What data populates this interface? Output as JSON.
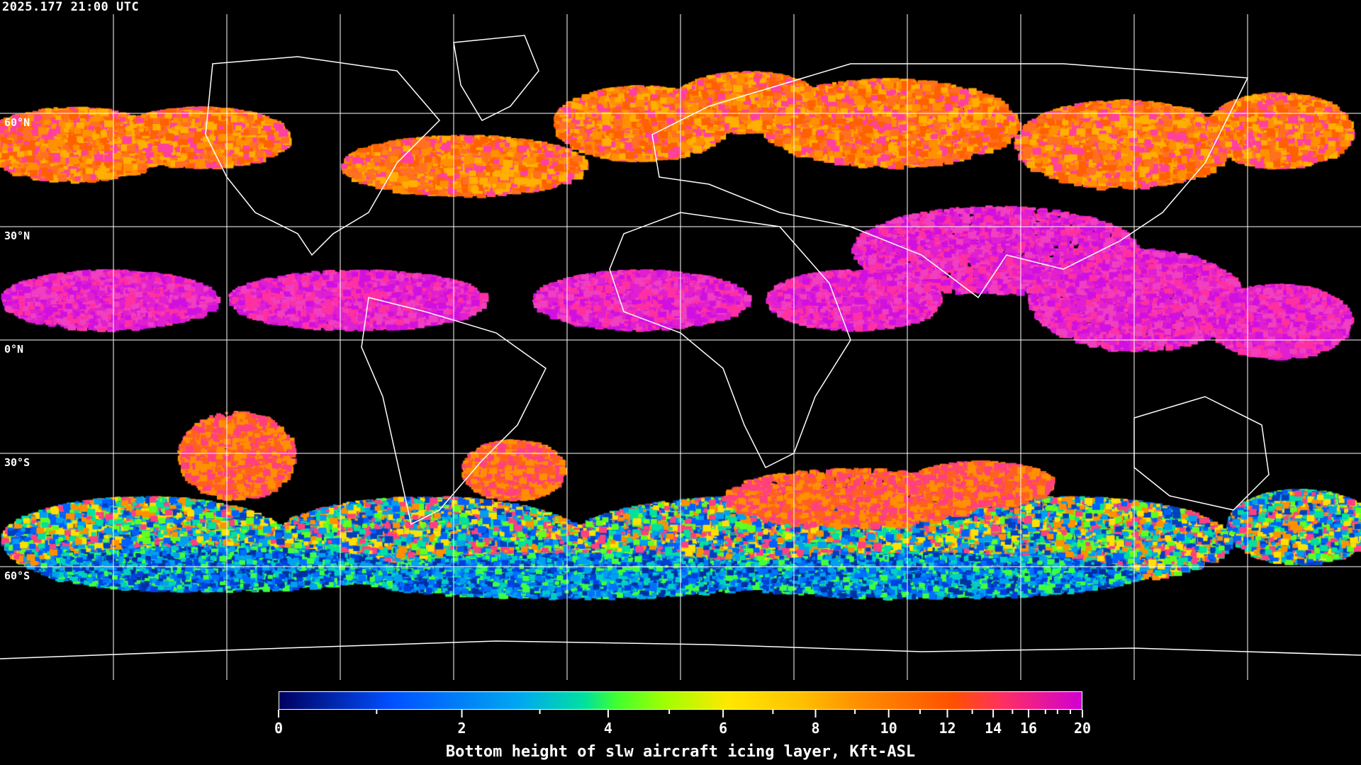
{
  "timestamp": "2025.177 21:00 UTC",
  "map": {
    "projection": "equirectangular",
    "gridlines_longitude_step_deg": 30,
    "gridlines_latitude_step_deg": 30,
    "lat_labels": [
      "60°N",
      "30°N",
      "0°N",
      "30°S",
      "60°S"
    ],
    "grid_color": "#ffffff",
    "coastline_color": "#ffffff",
    "background": "#000000"
  },
  "colorbar": {
    "title": "Bottom height of slw aircraft icing layer, Kft-ASL",
    "min": 0,
    "max": 20,
    "major_ticks": [
      "0",
      "2",
      "4",
      "6",
      "8",
      "10",
      "12",
      "14",
      "16",
      "20"
    ],
    "minor_ticks": [
      1,
      3,
      5,
      7,
      9,
      11,
      13,
      15,
      17,
      18,
      19
    ],
    "colors": [
      "#000060",
      "#0050ff",
      "#00a8f0",
      "#00e0a0",
      "#40ff30",
      "#a0ff00",
      "#ffe800",
      "#ffc000",
      "#ff9000",
      "#ff5000",
      "#ff3060",
      "#d000d0"
    ]
  }
}
